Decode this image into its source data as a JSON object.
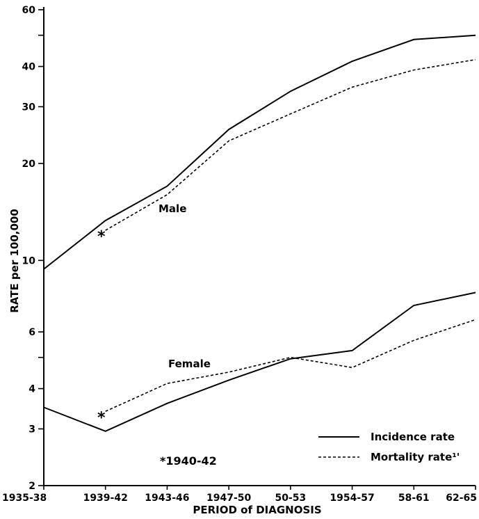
{
  "chart_data": {
    "type": "line",
    "title": "",
    "xlabel": "PERIOD of DIAGNOSIS",
    "ylabel": "RATE per 100,000",
    "y_scale": "log",
    "ylim": [
      2,
      60
    ],
    "y_ticks": [
      2,
      3,
      4,
      6,
      10,
      20,
      30,
      40,
      60
    ],
    "y_minor_ticks": [
      5,
      50
    ],
    "categories": [
      "1935-38",
      "1939-42",
      "1943-46",
      "1947-50",
      "50-53",
      "1954-57",
      "58-61",
      "62-65"
    ],
    "grid": false,
    "legend_position": "bottom-right",
    "legend": [
      {
        "label": "Incidence rate",
        "style": "solid"
      },
      {
        "label": "Mortality rate¹'",
        "style": "dashed"
      }
    ],
    "groups": [
      {
        "label": "Male",
        "label_near": "1943-46"
      },
      {
        "label": "Female",
        "label_near": "1943-46"
      }
    ],
    "series": [
      {
        "group": "Male",
        "kind": "Incidence",
        "style": "solid",
        "values": [
          9.4,
          13.3,
          17.0,
          25.5,
          33.5,
          41.5,
          48.5,
          50.0
        ]
      },
      {
        "group": "Male",
        "kind": "Mortality",
        "style": "dashed",
        "values": [
          null,
          12.4,
          16.0,
          23.5,
          28.5,
          34.5,
          39.0,
          42.0
        ]
      },
      {
        "group": "Female",
        "kind": "Incidence",
        "style": "solid",
        "values": [
          3.5,
          2.95,
          3.6,
          4.25,
          4.95,
          5.25,
          7.25,
          7.95
        ]
      },
      {
        "group": "Female",
        "kind": "Mortality",
        "style": "dashed",
        "values": [
          null,
          3.4,
          4.15,
          4.5,
          5.0,
          4.65,
          5.65,
          6.55
        ]
      }
    ],
    "annotations": [
      {
        "text": "*",
        "category": "1939-42",
        "group": "Male",
        "value": 12.4
      },
      {
        "text": "*",
        "category": "1939-42",
        "group": "Female",
        "value": 3.4
      },
      {
        "text": "*1940-42",
        "role": "footnote"
      }
    ],
    "colors": {
      "ink": "#000000",
      "background": "#ffffff"
    }
  }
}
